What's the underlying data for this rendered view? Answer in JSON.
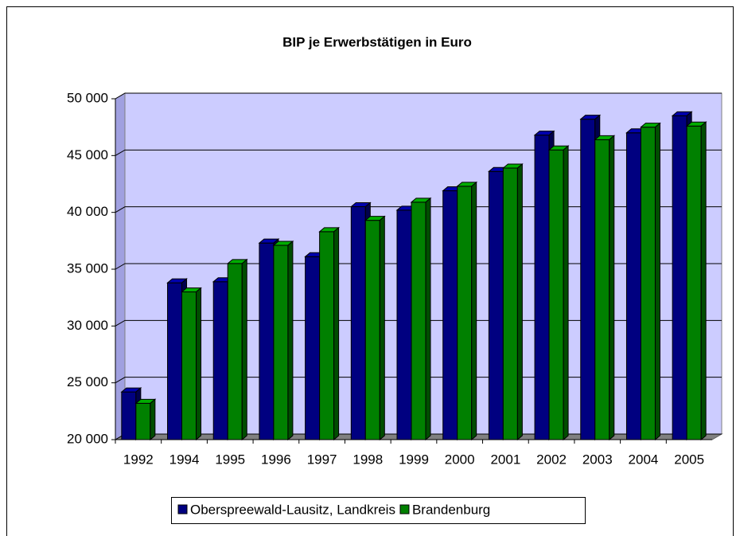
{
  "chart_data": {
    "type": "bar",
    "title": "BIP je Erwerbstätigen in Euro",
    "categories": [
      "1992",
      "1994",
      "1995",
      "1996",
      "1997",
      "1998",
      "1999",
      "2000",
      "2001",
      "2002",
      "2003",
      "2004",
      "2005"
    ],
    "series": [
      {
        "name": "Oberspreewald-Lausitz, Landkreis",
        "color": "#000080",
        "values": [
          24200,
          33800,
          33900,
          37300,
          36100,
          40500,
          40200,
          41900,
          43600,
          46800,
          48200,
          47000,
          48500
        ]
      },
      {
        "name": "Brandenburg",
        "color": "#008000",
        "values": [
          23200,
          33000,
          35500,
          37100,
          38300,
          39300,
          40900,
          42300,
          43900,
          45500,
          46400,
          47500,
          47600
        ]
      }
    ],
    "ylim": [
      20000,
      50000
    ],
    "yticks": [
      {
        "value": 20000,
        "label": "20 000"
      },
      {
        "value": 25000,
        "label": "25 000"
      },
      {
        "value": 30000,
        "label": "30 000"
      },
      {
        "value": 35000,
        "label": "35 000"
      },
      {
        "value": 40000,
        "label": "40 000"
      },
      {
        "value": 45000,
        "label": "45 000"
      },
      {
        "value": 50000,
        "label": "50 000"
      }
    ],
    "grid": true,
    "legend": "bottom"
  }
}
